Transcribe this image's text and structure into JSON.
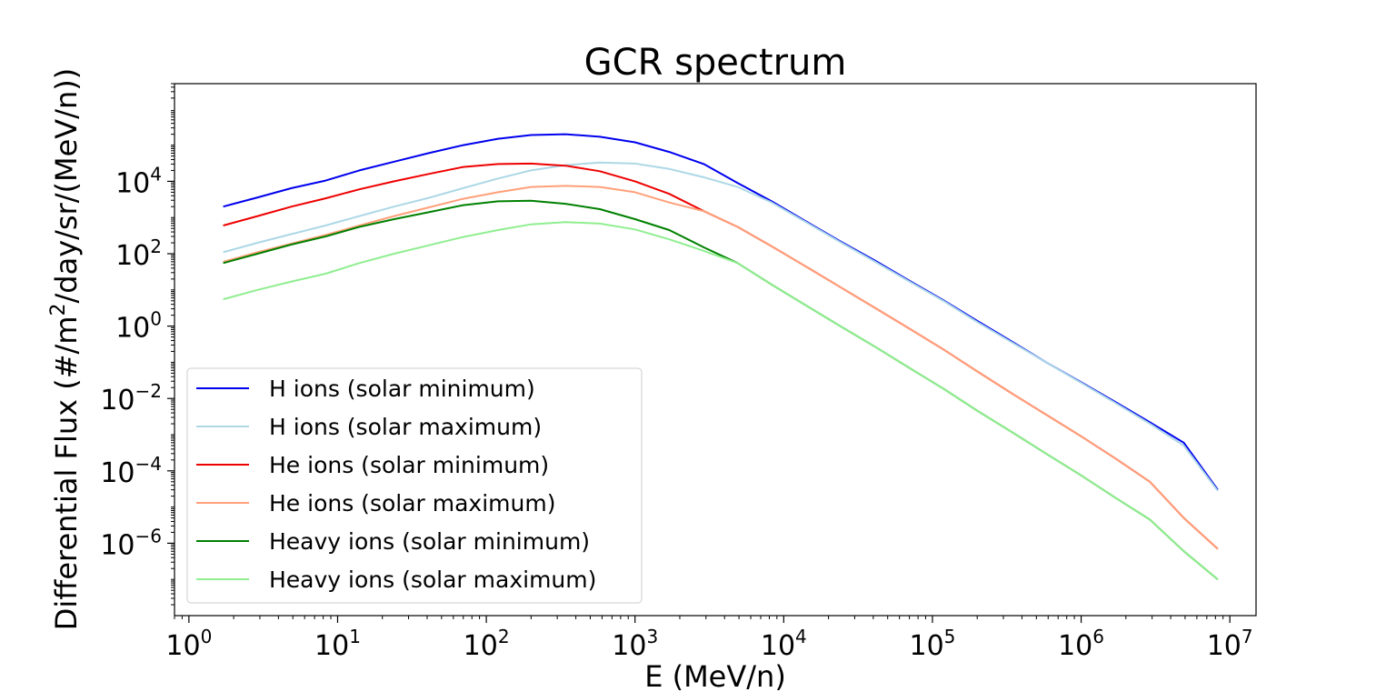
{
  "chart_data": {
    "type": "line",
    "title": "GCR spectrum",
    "xlabel": "E (MeV/n)",
    "ylabel": "Differential Flux (#/m²/day/sr/(MeV/n))",
    "ylabel_parts": {
      "before": "Differential Flux (#/m",
      "sup": "2",
      "after": "/day/sr/(MeV/n))"
    },
    "xscale": "log",
    "yscale": "log",
    "xlim": [
      0.8,
      15000000
    ],
    "ylim": [
      1e-08,
      5000000
    ],
    "xticks": [
      {
        "value": 1,
        "base": "10",
        "exp": "0"
      },
      {
        "value": 10,
        "base": "10",
        "exp": "1"
      },
      {
        "value": 100,
        "base": "10",
        "exp": "2"
      },
      {
        "value": 1000,
        "base": "10",
        "exp": "3"
      },
      {
        "value": 10000,
        "base": "10",
        "exp": "4"
      },
      {
        "value": 100000,
        "base": "10",
        "exp": "5"
      },
      {
        "value": 1000000,
        "base": "10",
        "exp": "6"
      },
      {
        "value": 10000000,
        "base": "10",
        "exp": "7"
      }
    ],
    "yticks": [
      {
        "value": 1e-06,
        "base": "10",
        "exp": "−6"
      },
      {
        "value": 0.0001,
        "base": "10",
        "exp": "−4"
      },
      {
        "value": 0.01,
        "base": "10",
        "exp": "−2"
      },
      {
        "value": 1,
        "base": "10",
        "exp": "0"
      },
      {
        "value": 100,
        "base": "10",
        "exp": "2"
      },
      {
        "value": 10000,
        "base": "10",
        "exp": "4"
      }
    ],
    "grid": false,
    "legend_position": "lower-left",
    "x": [
      1.7,
      2.9,
      4.9,
      8.3,
      14,
      24,
      41,
      70,
      120,
      200,
      340,
      580,
      1000,
      1700,
      2900,
      4900,
      8300,
      14000,
      24000,
      41000,
      70000,
      120000,
      200000,
      340000,
      580000,
      1000000,
      1700000,
      2900000,
      4900000,
      8300000
    ],
    "series": [
      {
        "name": "H ions (solar minimum)",
        "color": "#0000ee",
        "values": [
          2000,
          3600,
          6500,
          10500,
          20000,
          35000,
          60000,
          100000,
          150000,
          190000,
          200000,
          170000,
          120000,
          65000,
          30000,
          9000,
          2800,
          800,
          220,
          65,
          18,
          5,
          1.4,
          0.38,
          0.1,
          0.028,
          0.008,
          0.0022,
          0.0006,
          3e-05
        ]
      },
      {
        "name": "H ions (solar maximum)",
        "color": "#add8e6",
        "values": [
          110,
          200,
          350,
          600,
          1100,
          2000,
          3500,
          6500,
          12000,
          20000,
          28000,
          33000,
          31000,
          22000,
          13000,
          7000,
          2600,
          760,
          210,
          60,
          17,
          4.8,
          1.3,
          0.36,
          0.1,
          0.027,
          0.0075,
          0.002,
          0.0005,
          2.8e-05
        ]
      },
      {
        "name": "He ions (solar minimum)",
        "color": "#ee0000",
        "values": [
          600,
          1100,
          2000,
          3400,
          6000,
          10000,
          16000,
          25000,
          30000,
          31000,
          27000,
          19000,
          10000,
          4500,
          1500,
          550,
          160,
          45,
          12,
          3.2,
          0.85,
          0.22,
          0.056,
          0.014,
          0.0036,
          0.0009,
          0.00022,
          5e-05,
          5e-06,
          7e-07
        ]
      },
      {
        "name": "He ions (solar maximum)",
        "color": "#ffa07a",
        "values": [
          60,
          110,
          190,
          330,
          600,
          1100,
          1900,
          3300,
          5000,
          7000,
          7500,
          7000,
          5000,
          2600,
          1500,
          550,
          160,
          45,
          12,
          3.2,
          0.85,
          0.22,
          0.056,
          0.014,
          0.0036,
          0.0009,
          0.00022,
          5e-05,
          5e-06,
          7e-07
        ]
      },
      {
        "name": "Heavy ions (solar minimum)",
        "color": "#008000",
        "values": [
          55,
          100,
          180,
          300,
          550,
          900,
          1400,
          2200,
          2800,
          2900,
          2400,
          1700,
          900,
          450,
          150,
          55,
          14,
          3.8,
          1,
          0.27,
          0.07,
          0.018,
          0.0046,
          0.0012,
          0.0003,
          7.5e-05,
          1.8e-05,
          4.5e-06,
          6e-07,
          1e-07
        ]
      },
      {
        "name": "Heavy ions (solar maximum)",
        "color": "#90ee90",
        "values": [
          5.5,
          10,
          17,
          28,
          55,
          100,
          170,
          290,
          450,
          650,
          750,
          680,
          470,
          250,
          120,
          55,
          14,
          3.8,
          1,
          0.27,
          0.07,
          0.018,
          0.0046,
          0.0012,
          0.0003,
          7.5e-05,
          1.8e-05,
          4.5e-06,
          6e-07,
          1e-07
        ]
      }
    ]
  }
}
